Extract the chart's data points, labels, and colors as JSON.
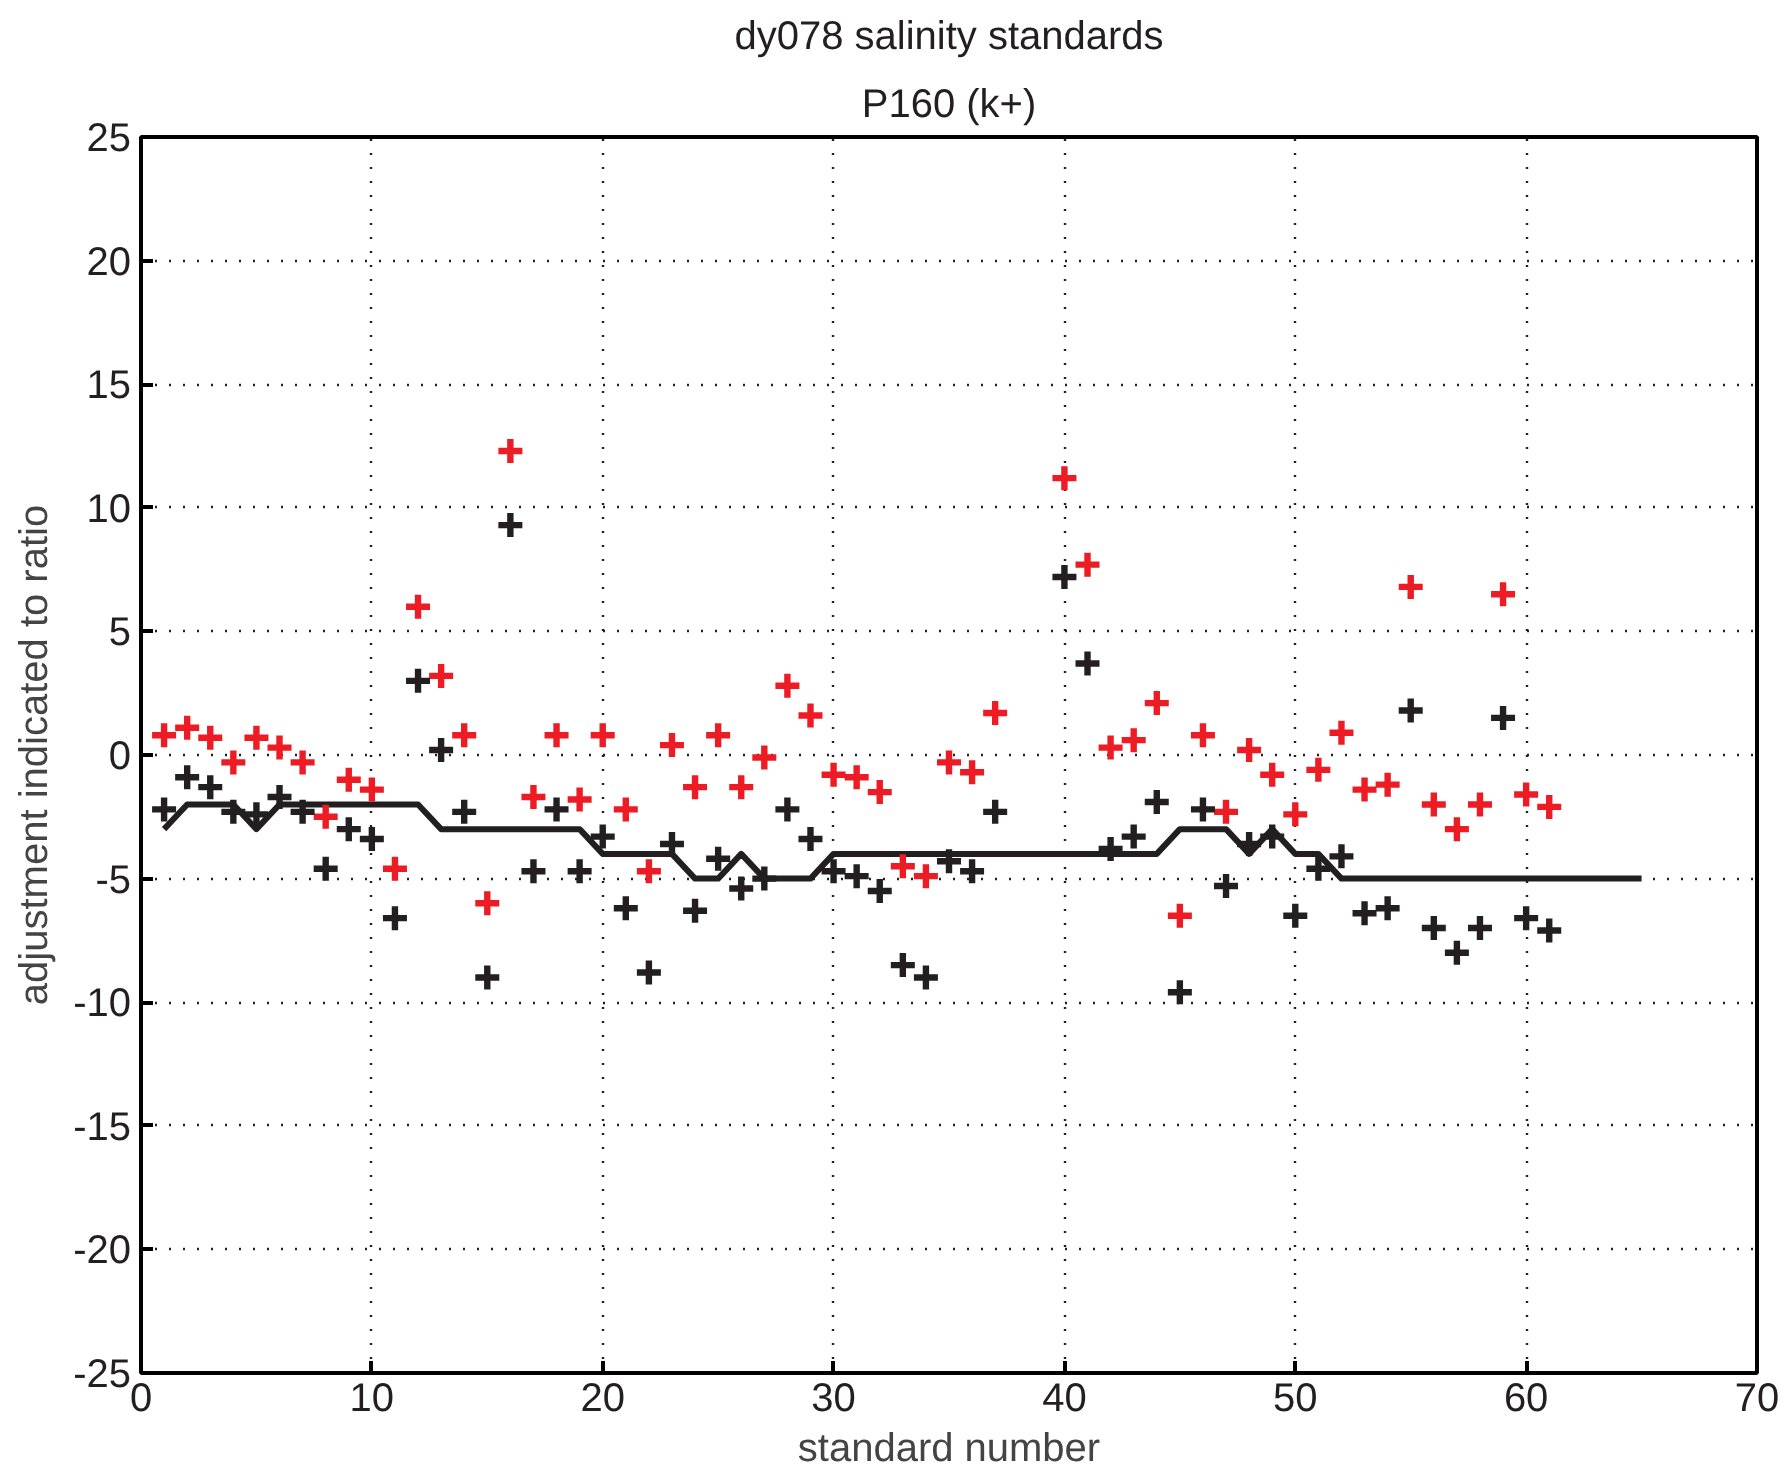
{
  "chart_data": {
    "type": "scatter",
    "title": "dy078 salinity standards",
    "subtitle": "P160 (k+)",
    "xlabel": "standard number",
    "ylabel": "adjustment indicated to ratio",
    "xlim": [
      0,
      70
    ],
    "xticks": [
      0,
      10,
      20,
      30,
      40,
      50,
      60,
      70
    ],
    "ylim": [
      -25,
      25
    ],
    "yticks": [
      -25,
      -20,
      -15,
      -10,
      -5,
      0,
      5,
      10,
      15,
      20,
      25
    ],
    "grid": true,
    "marker": "cross",
    "x": [
      1,
      2,
      3,
      4,
      5,
      6,
      7,
      8,
      9,
      10,
      11,
      12,
      13,
      14,
      15,
      16,
      17,
      18,
      19,
      20,
      21,
      22,
      23,
      24,
      25,
      26,
      27,
      28,
      29,
      30,
      31,
      32,
      33,
      34,
      35,
      36,
      37,
      38,
      39,
      40,
      41,
      42,
      43,
      44,
      45,
      46,
      47,
      48,
      49,
      50,
      51,
      52,
      53,
      54,
      55,
      56,
      57,
      58,
      59,
      60,
      61
    ],
    "series": [
      {
        "color": "#ed1c24",
        "values": [
          0.8,
          1.1,
          0.7,
          -0.3,
          0.7,
          0.3,
          -0.3,
          -2.5,
          -1.0,
          -1.4,
          -4.6,
          6.0,
          3.2,
          0.8,
          -6.0,
          12.3,
          -1.7,
          0.8,
          -1.8,
          0.8,
          -2.2,
          -4.7,
          0.4,
          -1.3,
          0.8,
          -1.3,
          -0.1,
          2.8,
          1.6,
          -0.8,
          -0.9,
          -1.5,
          -4.5,
          -4.9,
          -0.3,
          -0.7,
          1.7,
          null,
          null,
          11.2,
          7.7,
          0.3,
          0.6,
          2.1,
          -6.5,
          0.8,
          -2.3,
          0.2,
          -0.8,
          -2.4,
          -0.6,
          0.9,
          -1.4,
          -1.2,
          6.8,
          -2.0,
          -3.0,
          -2.0,
          6.5,
          -1.6,
          -2.1
        ]
      },
      {
        "color": "#231f20",
        "values": [
          -2.2,
          -0.9,
          -1.3,
          -2.3,
          -2.4,
          -1.7,
          -2.3,
          -4.6,
          -3.0,
          -3.4,
          -6.6,
          3.0,
          0.2,
          -2.3,
          -9.0,
          9.3,
          -4.7,
          -2.2,
          -4.7,
          -3.3,
          -6.2,
          -8.8,
          -3.6,
          -6.3,
          -4.2,
          -5.4,
          -5.0,
          -2.2,
          -3.4,
          -4.7,
          -4.9,
          -5.5,
          -8.5,
          -9.0,
          -4.3,
          -4.7,
          -2.3,
          null,
          null,
          7.2,
          3.7,
          -3.8,
          -3.3,
          -1.9,
          -9.6,
          -2.2,
          -5.3,
          -3.6,
          -3.3,
          -6.5,
          -4.6,
          -4.1,
          -6.4,
          -6.2,
          1.8,
          -7.0,
          -8.0,
          -7.0,
          1.5,
          -6.6,
          -7.1
        ]
      },
      {
        "type": "line",
        "color": "#231f20",
        "line_style": "solid",
        "marker": "none",
        "x": [
          1,
          2,
          3,
          4,
          5,
          6,
          7,
          8,
          9,
          10,
          11,
          12,
          13,
          14,
          15,
          16,
          17,
          18,
          19,
          20,
          21,
          22,
          23,
          24,
          25,
          26,
          27,
          28,
          29,
          30,
          31,
          32,
          33,
          34,
          35,
          36,
          37,
          38,
          39,
          40,
          41,
          42,
          43,
          44,
          45,
          46,
          47,
          48,
          49,
          50,
          51,
          52,
          53,
          54,
          55,
          56,
          57,
          58,
          59,
          60,
          61,
          62,
          63,
          64,
          65
        ],
        "values": [
          -3,
          -2,
          -2,
          -2,
          -3,
          -2,
          -2,
          -2,
          -2,
          -2,
          -2,
          -2,
          -3,
          -3,
          -3,
          -3,
          -3,
          -3,
          -3,
          -4,
          -4,
          -4,
          -4,
          -5,
          -5,
          -4,
          -5,
          -5,
          -5,
          -4,
          -4,
          -4,
          -4,
          -4,
          -4,
          -4,
          -4,
          -4,
          -4,
          -4,
          -4,
          -4,
          -4,
          -4,
          -3,
          -3,
          -3,
          -4,
          -3,
          -4,
          -4,
          -5,
          -5,
          -5,
          -5,
          -5,
          -5,
          -5,
          -5,
          -5,
          -5,
          -5,
          -5,
          -5,
          -5
        ]
      }
    ]
  }
}
